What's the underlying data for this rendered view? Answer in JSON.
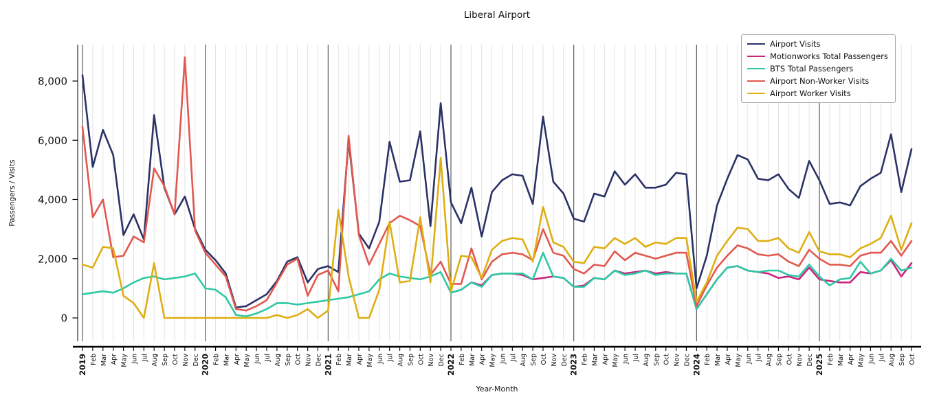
{
  "chart_data": {
    "type": "line",
    "title": "Liberal Airport",
    "xlabel": "Year-Month",
    "ylabel": "Passengers / Visits",
    "y_ticks": [
      0,
      2000,
      4000,
      6000,
      8000
    ],
    "ylim": [
      -500,
      9300
    ],
    "legend_position": "upper right",
    "grid": "light vertical gridline per month, dark vertical line at each January",
    "month_abbr": [
      "Jan",
      "Feb",
      "Mar",
      "Apr",
      "May",
      "Jun",
      "Jul",
      "Aug",
      "Sep",
      "Oct",
      "Nov",
      "Dec"
    ],
    "categories": [
      "2019-01",
      "2019-02",
      "2019-03",
      "2019-04",
      "2019-05",
      "2019-06",
      "2019-07",
      "2019-08",
      "2019-09",
      "2019-10",
      "2019-11",
      "2019-12",
      "2020-01",
      "2020-02",
      "2020-03",
      "2020-04",
      "2020-05",
      "2020-06",
      "2020-07",
      "2020-08",
      "2020-09",
      "2020-10",
      "2020-11",
      "2020-12",
      "2021-01",
      "2021-02",
      "2021-03",
      "2021-04",
      "2021-05",
      "2021-06",
      "2021-07",
      "2021-08",
      "2021-09",
      "2021-10",
      "2021-11",
      "2021-12",
      "2022-01",
      "2022-02",
      "2022-03",
      "2022-04",
      "2022-05",
      "2022-06",
      "2022-07",
      "2022-08",
      "2022-09",
      "2022-10",
      "2022-11",
      "2022-12",
      "2023-01",
      "2023-02",
      "2023-03",
      "2023-04",
      "2023-05",
      "2023-06",
      "2023-07",
      "2023-08",
      "2023-09",
      "2023-10",
      "2023-11",
      "2023-12",
      "2024-01",
      "2024-02",
      "2024-03",
      "2024-04",
      "2024-05",
      "2024-06",
      "2024-07",
      "2024-08",
      "2024-09",
      "2024-10",
      "2024-11",
      "2024-12",
      "2025-01",
      "2025-02",
      "2025-03",
      "2025-04",
      "2025-05",
      "2025-06",
      "2025-07",
      "2025-08",
      "2025-09",
      "2025-10"
    ],
    "series": [
      {
        "name": "Airport Visits",
        "color": "#2b3266",
        "values": [
          8200,
          5100,
          6350,
          5500,
          2800,
          3500,
          2650,
          6850,
          4400,
          3500,
          4100,
          3000,
          2300,
          1950,
          1500,
          350,
          400,
          600,
          800,
          1250,
          1900,
          2050,
          1200,
          1650,
          1750,
          1550,
          6000,
          2850,
          2350,
          3250,
          5950,
          4600,
          4650,
          6300,
          3100,
          7250,
          3900,
          3200,
          4400,
          2750,
          4250,
          4650,
          4850,
          4800,
          3850,
          6800,
          4600,
          4200,
          3350,
          3250,
          4200,
          4100,
          4950,
          4500,
          4850,
          4400,
          4400,
          4500,
          4900,
          4850,
          1000,
          2100,
          3800,
          4700,
          5500,
          5350,
          4700,
          4650,
          4850,
          4350,
          4050,
          5300,
          4650,
          3850,
          3900,
          3800,
          4450,
          4700,
          4900,
          6200,
          4250,
          5700
        ]
      },
      {
        "name": "Motionworks Total Passengers",
        "color": "#c9267d",
        "values": [
          null,
          null,
          null,
          null,
          null,
          null,
          null,
          null,
          null,
          null,
          null,
          null,
          null,
          null,
          null,
          null,
          null,
          null,
          null,
          null,
          null,
          null,
          null,
          null,
          null,
          null,
          null,
          null,
          null,
          null,
          null,
          null,
          null,
          null,
          null,
          null,
          850,
          950,
          1200,
          1100,
          1450,
          1500,
          1500,
          1450,
          1300,
          1350,
          1400,
          1350,
          1050,
          1100,
          1350,
          1300,
          1600,
          1500,
          1550,
          1600,
          1500,
          1550,
          1500,
          1500,
          300,
          800,
          1300,
          1700,
          1750,
          1600,
          1550,
          1500,
          1350,
          1400,
          1300,
          1700,
          1300,
          1250,
          1200,
          1200,
          1550,
          1500,
          1600,
          1950,
          1400,
          1850
        ]
      },
      {
        "name": "BTS Total Passengers",
        "color": "#2ec8a5",
        "values": [
          800,
          850,
          900,
          850,
          1000,
          1200,
          1350,
          1400,
          1300,
          1350,
          1400,
          1500,
          1000,
          950,
          700,
          100,
          50,
          150,
          300,
          500,
          500,
          450,
          500,
          550,
          600,
          650,
          700,
          800,
          900,
          1300,
          1500,
          1400,
          1350,
          1300,
          1400,
          1550,
          850,
          950,
          1200,
          1050,
          1450,
          1500,
          1500,
          1500,
          1300,
          2200,
          1400,
          1350,
          1050,
          1050,
          1350,
          1300,
          1600,
          1450,
          1500,
          1600,
          1450,
          1500,
          1500,
          1500,
          300,
          800,
          1300,
          1700,
          1750,
          1600,
          1550,
          1600,
          1600,
          1450,
          1400,
          1800,
          1400,
          1100,
          1300,
          1350,
          1900,
          1500,
          1600,
          2000,
          1600,
          1700
        ]
      },
      {
        "name": "Airport Non-Worker Visits",
        "color": "#e2584f",
        "values": [
          6450,
          3400,
          4000,
          2050,
          2100,
          2750,
          2550,
          5050,
          4450,
          3500,
          8800,
          2950,
          2200,
          1800,
          1400,
          300,
          250,
          400,
          600,
          1200,
          1800,
          2000,
          750,
          1450,
          1600,
          900,
          6150,
          2800,
          1800,
          2500,
          3200,
          3450,
          3300,
          3100,
          1450,
          1900,
          1150,
          1150,
          2350,
          1300,
          1900,
          2150,
          2200,
          2150,
          1950,
          3000,
          2200,
          2100,
          1650,
          1500,
          1800,
          1750,
          2250,
          1950,
          2200,
          2100,
          2000,
          2100,
          2200,
          2200,
          400,
          1100,
          1700,
          2100,
          2450,
          2350,
          2150,
          2100,
          2150,
          1900,
          1750,
          2300,
          2000,
          1800,
          1800,
          1750,
          2100,
          2200,
          2200,
          2600,
          2100,
          2600
        ]
      },
      {
        "name": "Airport Worker Visits",
        "color": "#dfae12",
        "values": [
          1800,
          1700,
          2400,
          2350,
          750,
          500,
          0,
          1850,
          0,
          0,
          0,
          0,
          0,
          0,
          0,
          0,
          0,
          0,
          0,
          100,
          0,
          100,
          300,
          0,
          250,
          3650,
          1400,
          0,
          0,
          950,
          3250,
          1200,
          1250,
          3400,
          1200,
          5400,
          900,
          2100,
          2050,
          1350,
          2300,
          2600,
          2700,
          2650,
          1900,
          3750,
          2550,
          2400,
          1900,
          1850,
          2400,
          2350,
          2700,
          2500,
          2700,
          2400,
          2550,
          2500,
          2700,
          2700,
          550,
          1200,
          2100,
          2600,
          3050,
          3000,
          2600,
          2600,
          2700,
          2350,
          2200,
          2900,
          2250,
          2150,
          2150,
          2050,
          2350,
          2500,
          2700,
          3450,
          2300,
          3200
        ]
      }
    ]
  }
}
